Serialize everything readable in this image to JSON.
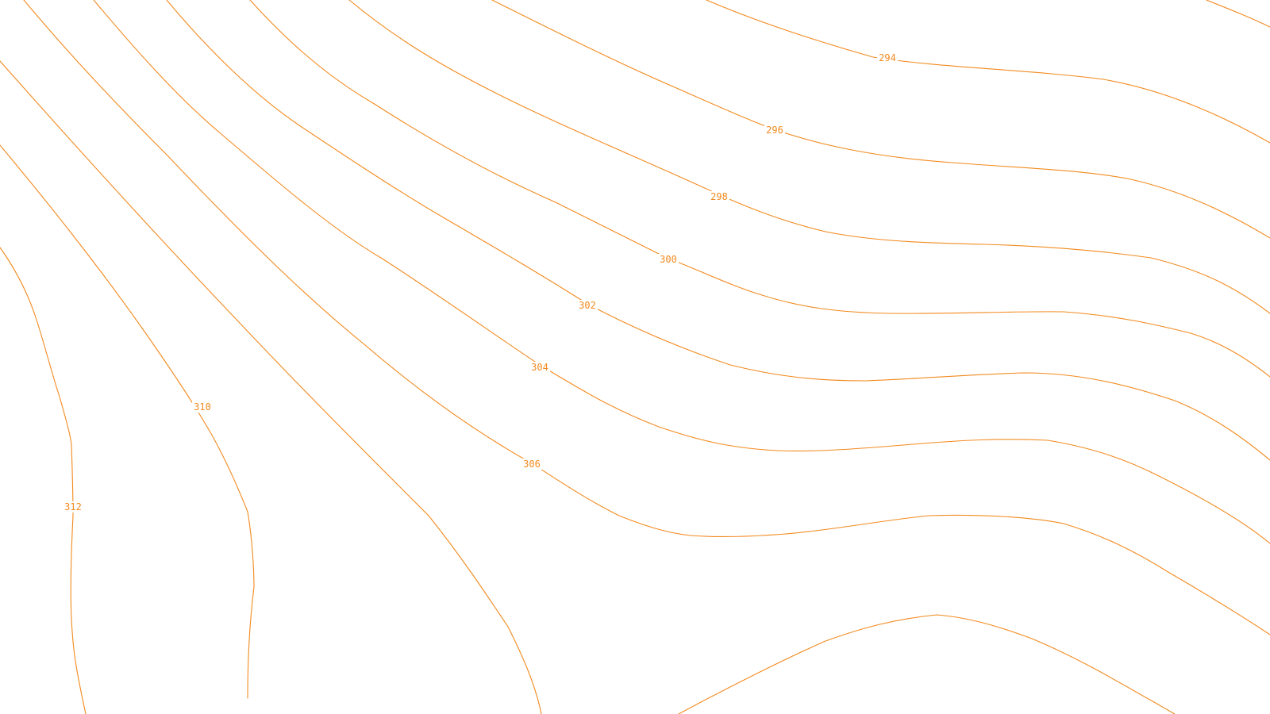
{
  "map": {
    "type": "contour-map",
    "line_color": "#f28a1f",
    "background_color": "#ffffff",
    "contours": [
      {
        "id": "294",
        "label": "294"
      },
      {
        "id": "296",
        "label": "296"
      },
      {
        "id": "298",
        "label": "298"
      },
      {
        "id": "300",
        "label": "300"
      },
      {
        "id": "302",
        "label": "302"
      },
      {
        "id": "304",
        "label": "304"
      },
      {
        "id": "306",
        "label": "306"
      },
      {
        "id": "308",
        "label": ""
      },
      {
        "id": "310",
        "label": "310"
      },
      {
        "id": "312",
        "label": "312"
      },
      {
        "id": "top-right",
        "label": ""
      },
      {
        "id": "bottom-arch",
        "label": ""
      }
    ]
  }
}
